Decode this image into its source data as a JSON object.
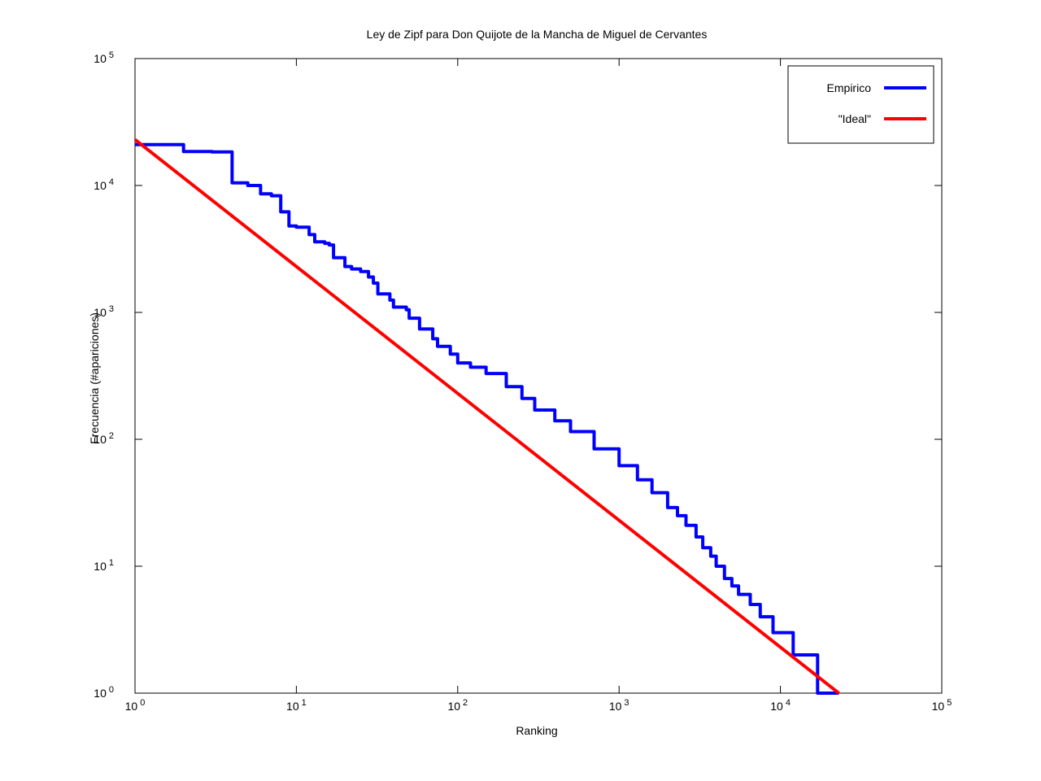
{
  "chart_data": {
    "type": "line",
    "title": "Ley de Zipf para Don Quijote de la Mancha de Miguel de Cervantes",
    "xlabel": "Ranking",
    "ylabel": "Frecuencia (#apariciones)",
    "xscale": "log",
    "yscale": "log",
    "xlim": [
      1,
      100000
    ],
    "ylim": [
      1,
      100000
    ],
    "x_ticks": [
      {
        "base": "10",
        "exp": "0",
        "value": 1
      },
      {
        "base": "10",
        "exp": "1",
        "value": 10
      },
      {
        "base": "10",
        "exp": "2",
        "value": 100
      },
      {
        "base": "10",
        "exp": "3",
        "value": 1000
      },
      {
        "base": "10",
        "exp": "4",
        "value": 10000
      },
      {
        "base": "10",
        "exp": "5",
        "value": 100000
      }
    ],
    "y_ticks": [
      {
        "base": "10",
        "exp": "0",
        "value": 1
      },
      {
        "base": "10",
        "exp": "1",
        "value": 10
      },
      {
        "base": "10",
        "exp": "2",
        "value": 100
      },
      {
        "base": "10",
        "exp": "3",
        "value": 1000
      },
      {
        "base": "10",
        "exp": "4",
        "value": 10000
      },
      {
        "base": "10",
        "exp": "5",
        "value": 100000
      }
    ],
    "legend": "top-right",
    "grid": false,
    "series": [
      {
        "name": "Empirico",
        "color": "#0000ff",
        "style": "steps",
        "points": [
          [
            1,
            21000
          ],
          [
            2,
            18500
          ],
          [
            3,
            18400
          ],
          [
            4,
            10500
          ],
          [
            5,
            10000
          ],
          [
            6,
            8600
          ],
          [
            7,
            8300
          ],
          [
            8,
            6200
          ],
          [
            9,
            4800
          ],
          [
            10,
            4700
          ],
          [
            12,
            4100
          ],
          [
            13,
            3600
          ],
          [
            15,
            3500
          ],
          [
            16,
            3400
          ],
          [
            17,
            2700
          ],
          [
            20,
            2300
          ],
          [
            22,
            2200
          ],
          [
            25,
            2100
          ],
          [
            28,
            1900
          ],
          [
            30,
            1700
          ],
          [
            32,
            1400
          ],
          [
            38,
            1250
          ],
          [
            40,
            1100
          ],
          [
            48,
            1050
          ],
          [
            50,
            900
          ],
          [
            58,
            740
          ],
          [
            70,
            620
          ],
          [
            75,
            540
          ],
          [
            90,
            470
          ],
          [
            100,
            400
          ],
          [
            120,
            370
          ],
          [
            150,
            330
          ],
          [
            200,
            260
          ],
          [
            250,
            210
          ],
          [
            300,
            170
          ],
          [
            400,
            140
          ],
          [
            500,
            115
          ],
          [
            700,
            84
          ],
          [
            1000,
            62
          ],
          [
            1300,
            48
          ],
          [
            1600,
            38
          ],
          [
            2000,
            29
          ],
          [
            2300,
            25
          ],
          [
            2600,
            21
          ],
          [
            3000,
            17
          ],
          [
            3300,
            14
          ],
          [
            3700,
            12
          ],
          [
            4000,
            10
          ],
          [
            4500,
            8
          ],
          [
            5000,
            7
          ],
          [
            5500,
            6
          ],
          [
            6500,
            5
          ],
          [
            7500,
            4
          ],
          [
            9000,
            3
          ],
          [
            12000,
            2
          ],
          [
            17000,
            1
          ],
          [
            23000,
            1
          ]
        ]
      },
      {
        "name": "\"Ideal\"",
        "color": "#ff0000",
        "style": "line",
        "points": [
          [
            1,
            23000
          ],
          [
            23000,
            1
          ]
        ]
      }
    ]
  }
}
